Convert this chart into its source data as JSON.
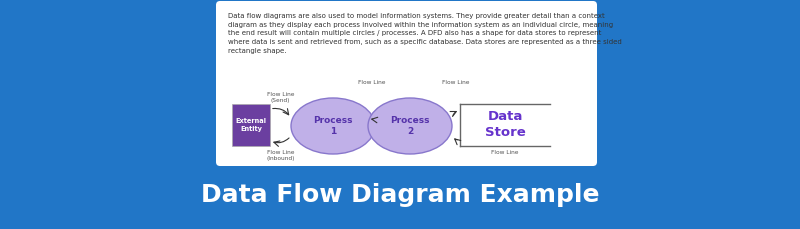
{
  "background_color": "#2176C7",
  "card_bg": "#ffffff",
  "title": "Data Flow Diagram Example",
  "title_color": "#ffffff",
  "title_fontsize": 18,
  "description_text": "Data flow diagrams are also used to model information systems. They provide greater detail than a context\ndiagram as they display each process involved within the information system as an individual circle, meaning\nthe end result will contain multiple circles / processes. A DFD also has a shape for data stores to represent\nwhere data is sent and retrieved from, such as a specific database. Data stores are represented as a three sided\nrectangle shape.",
  "desc_fontsize": 5.0,
  "desc_color": "#333333",
  "entity_box_color": "#6B3FA0",
  "entity_text": "External\nEntity",
  "entity_text_color": "#ffffff",
  "process1_color": "#c0b0e8",
  "process1_edge": "#8877cc",
  "process1_text": "Process\n1",
  "process1_text_color": "#5533aa",
  "process2_color": "#c0b0e8",
  "process2_edge": "#8877cc",
  "process2_text": "Process\n2",
  "process2_text_color": "#5533aa",
  "datastore_text": "Data\nStore",
  "datastore_text_color": "#6633cc",
  "flow_line_color": "#666666",
  "arrow_color": "#333333",
  "fl_label_color": "#555555",
  "fl_label_fontsize": 4.2
}
